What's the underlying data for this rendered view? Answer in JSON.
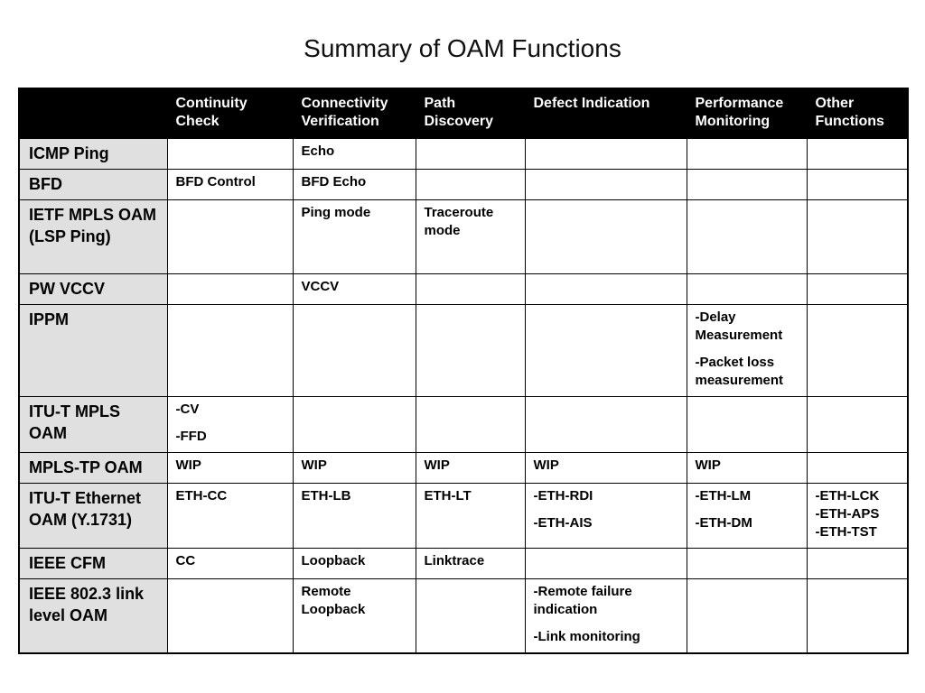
{
  "title": "Summary of OAM Functions",
  "table": {
    "columns": [
      "",
      "Continuity Check",
      "Connectivity Verification",
      "Path Discovery",
      "Defect Indication",
      "Performance Monitoring",
      "Other Functions"
    ],
    "rows": [
      {
        "name": "ICMP Ping",
        "cells": [
          [],
          [
            "Echo"
          ],
          [],
          [],
          [],
          []
        ]
      },
      {
        "name": "BFD",
        "cells": [
          [
            "BFD Control"
          ],
          [
            "BFD Echo"
          ],
          [],
          [],
          [],
          []
        ]
      },
      {
        "name": "IETF MPLS OAM (LSP Ping)",
        "cells": [
          [],
          [
            "Ping mode"
          ],
          [
            "Traceroute mode"
          ],
          [],
          [],
          []
        ]
      },
      {
        "name": "PW VCCV",
        "cells": [
          [],
          [
            "VCCV"
          ],
          [],
          [],
          [],
          []
        ]
      },
      {
        "name": "IPPM",
        "cells": [
          [],
          [],
          [],
          [],
          [
            "-Delay Measurement",
            "-Packet loss measurement"
          ],
          []
        ]
      },
      {
        "name": "ITU-T MPLS OAM",
        "cells": [
          [
            "-CV",
            "-FFD"
          ],
          [],
          [],
          [],
          [],
          []
        ]
      },
      {
        "name": "MPLS-TP OAM",
        "cells": [
          [
            "WIP"
          ],
          [
            "WIP"
          ],
          [
            "WIP"
          ],
          [
            "WIP"
          ],
          [
            "WIP"
          ],
          []
        ]
      },
      {
        "name": "ITU-T Ethernet OAM (Y.1731)",
        "cells": [
          [
            "ETH-CC"
          ],
          [
            "ETH-LB"
          ],
          [
            "ETH-LT"
          ],
          [
            "-ETH-RDI",
            "-ETH-AIS"
          ],
          [
            "-ETH-LM",
            "-ETH-DM"
          ],
          [
            "-ETH-LCK",
            "-ETH-APS",
            "-ETH-TST"
          ]
        ]
      },
      {
        "name": "IEEE CFM",
        "cells": [
          [
            "CC"
          ],
          [
            "Loopback"
          ],
          [
            "Linktrace"
          ],
          [],
          [],
          []
        ]
      },
      {
        "name": "IEEE 802.3 link level OAM",
        "cells": [
          [],
          [
            "Remote Loopback"
          ],
          [],
          [
            "-Remote failure indication",
            "-Link monitoring"
          ],
          [],
          []
        ]
      }
    ]
  }
}
